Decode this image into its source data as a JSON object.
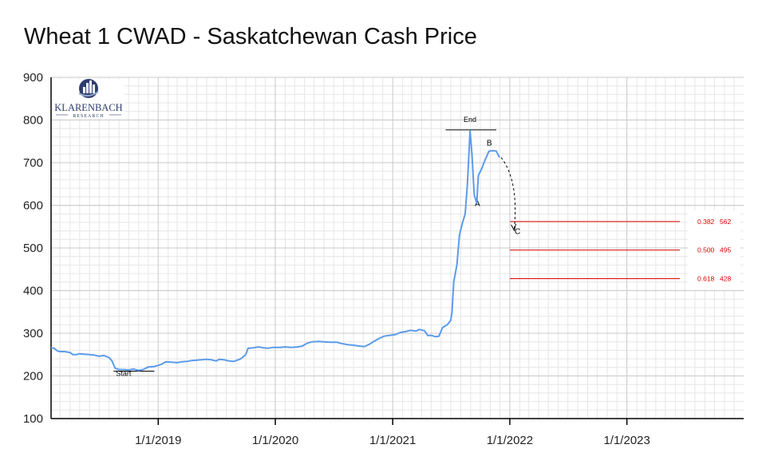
{
  "logo": {
    "name": "KLARENBACH",
    "tagline": "RESEARCH"
  },
  "colors": {
    "line": "#5b9bea",
    "fib": "#dd0000",
    "grid": "#d9d9d9",
    "axis": "#000000"
  },
  "chart_data": {
    "type": "line",
    "title": "Wheat 1 CWAD - Saskatchewan Cash Price",
    "xlabel": "",
    "ylabel": "",
    "ylim": [
      100,
      900
    ],
    "xlim": [
      "2018-02-01",
      "2023-12-31"
    ],
    "yticks": [
      100,
      200,
      300,
      400,
      500,
      600,
      700,
      800,
      900
    ],
    "xticks": [
      {
        "date": "2019-01-01",
        "label": "1/1/2019"
      },
      {
        "date": "2020-01-01",
        "label": "1/1/2020"
      },
      {
        "date": "2021-01-01",
        "label": "1/1/2021"
      },
      {
        "date": "2022-01-01",
        "label": "1/1/2022"
      },
      {
        "date": "2023-01-01",
        "label": "1/1/2023"
      }
    ],
    "grid": true,
    "series": [
      {
        "points": [
          [
            "2018-02-01",
            266
          ],
          [
            "2018-02-10",
            265
          ],
          [
            "2018-02-20",
            259
          ],
          [
            "2018-03-01",
            257
          ],
          [
            "2018-03-15",
            257
          ],
          [
            "2018-04-01",
            255
          ],
          [
            "2018-04-10",
            250
          ],
          [
            "2018-04-20",
            250
          ],
          [
            "2018-05-01",
            252
          ],
          [
            "2018-05-15",
            251
          ],
          [
            "2018-06-01",
            250
          ],
          [
            "2018-06-15",
            249
          ],
          [
            "2018-07-01",
            246
          ],
          [
            "2018-07-15",
            248
          ],
          [
            "2018-08-01",
            243
          ],
          [
            "2018-08-10",
            235
          ],
          [
            "2018-08-20",
            218
          ],
          [
            "2018-09-01",
            215
          ],
          [
            "2018-09-15",
            215
          ],
          [
            "2018-10-01",
            214
          ],
          [
            "2018-10-15",
            216
          ],
          [
            "2018-11-01",
            213
          ],
          [
            "2018-11-15",
            215
          ],
          [
            "2018-12-01",
            221
          ],
          [
            "2018-12-20",
            222
          ],
          [
            "2019-01-10",
            227
          ],
          [
            "2019-01-25",
            233
          ],
          [
            "2019-02-15",
            232
          ],
          [
            "2019-03-01",
            231
          ],
          [
            "2019-03-15",
            233
          ],
          [
            "2019-04-01",
            234
          ],
          [
            "2019-04-15",
            236
          ],
          [
            "2019-05-01",
            237
          ],
          [
            "2019-05-15",
            238
          ],
          [
            "2019-06-01",
            239
          ],
          [
            "2019-06-15",
            238
          ],
          [
            "2019-07-01",
            235
          ],
          [
            "2019-07-10",
            239
          ],
          [
            "2019-07-25",
            238
          ],
          [
            "2019-08-10",
            235
          ],
          [
            "2019-08-25",
            234
          ],
          [
            "2019-09-15",
            240
          ],
          [
            "2019-10-01",
            250
          ],
          [
            "2019-10-08",
            265
          ],
          [
            "2019-10-25",
            266
          ],
          [
            "2019-11-10",
            268
          ],
          [
            "2019-11-25",
            266
          ],
          [
            "2019-12-10",
            265
          ],
          [
            "2019-12-25",
            267
          ],
          [
            "2020-01-15",
            267
          ],
          [
            "2020-02-01",
            268
          ],
          [
            "2020-02-20",
            267
          ],
          [
            "2020-03-10",
            268
          ],
          [
            "2020-03-25",
            270
          ],
          [
            "2020-04-10",
            277
          ],
          [
            "2020-04-25",
            280
          ],
          [
            "2020-05-15",
            281
          ],
          [
            "2020-06-01",
            280
          ],
          [
            "2020-06-20",
            279
          ],
          [
            "2020-07-10",
            279
          ],
          [
            "2020-07-25",
            276
          ],
          [
            "2020-08-15",
            273
          ],
          [
            "2020-09-01",
            272
          ],
          [
            "2020-09-20",
            270
          ],
          [
            "2020-10-05",
            269
          ],
          [
            "2020-10-20",
            274
          ],
          [
            "2020-11-01",
            280
          ],
          [
            "2020-11-20",
            288
          ],
          [
            "2020-12-05",
            293
          ],
          [
            "2020-12-20",
            295
          ],
          [
            "2021-01-10",
            297
          ],
          [
            "2021-01-25",
            302
          ],
          [
            "2021-02-10",
            304
          ],
          [
            "2021-02-25",
            307
          ],
          [
            "2021-03-15",
            305
          ],
          [
            "2021-03-25",
            309
          ],
          [
            "2021-04-10",
            306
          ],
          [
            "2021-04-20",
            295
          ],
          [
            "2021-05-01",
            295
          ],
          [
            "2021-05-15",
            292
          ],
          [
            "2021-05-25",
            293
          ],
          [
            "2021-06-05",
            313
          ],
          [
            "2021-06-20",
            320
          ],
          [
            "2021-07-01",
            330
          ],
          [
            "2021-07-05",
            350
          ],
          [
            "2021-07-10",
            420
          ],
          [
            "2021-07-20",
            460
          ],
          [
            "2021-07-28",
            530
          ],
          [
            "2021-08-05",
            555
          ],
          [
            "2021-08-15",
            580
          ],
          [
            "2021-08-22",
            650
          ],
          [
            "2021-08-30",
            775
          ],
          [
            "2021-09-05",
            720
          ],
          [
            "2021-09-12",
            625
          ],
          [
            "2021-09-20",
            605
          ],
          [
            "2021-09-25",
            670
          ],
          [
            "2021-10-05",
            685
          ],
          [
            "2021-10-15",
            705
          ],
          [
            "2021-10-28",
            727
          ],
          [
            "2021-11-10",
            728
          ],
          [
            "2021-11-20",
            727
          ],
          [
            "2021-11-30",
            712
          ]
        ]
      }
    ],
    "annotations": [
      {
        "text": "Start",
        "date": "2018-09-15",
        "value": 200
      },
      {
        "text": "End",
        "date": "2021-08-30",
        "value": 795
      },
      {
        "text": "A",
        "date": "2021-09-22",
        "value": 598
      },
      {
        "text": "B",
        "date": "2021-10-29",
        "value": 740
      },
      {
        "text": "C",
        "date": "2022-01-25",
        "value": 533
      }
    ],
    "fib_levels": [
      {
        "ratio": "0.382",
        "value": 562
      },
      {
        "ratio": "0.500",
        "value": 495
      },
      {
        "ratio": "0.618",
        "value": 428
      }
    ]
  }
}
